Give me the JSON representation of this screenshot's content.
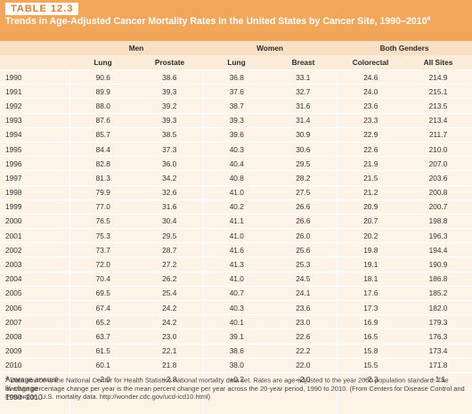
{
  "table_tag": "TABLE 12.3",
  "title": "Trends in Age-Adjusted Cancer Mortality Rates in the United States by Cancer Site, 1990–2010",
  "title_note_marker": "a",
  "group_headers": [
    "Men",
    "Women",
    "Both Genders"
  ],
  "column_headers": [
    "Lung",
    "Prostate",
    "Lung",
    "Breast",
    "Colorectal",
    "All Sites"
  ],
  "rows": [
    {
      "year": "1990",
      "values": [
        "90.6",
        "38.6",
        "36.8",
        "33.1",
        "24.6",
        "214.9"
      ]
    },
    {
      "year": "1991",
      "values": [
        "89.9",
        "39.3",
        "37.6",
        "32.7",
        "24.0",
        "215.1"
      ]
    },
    {
      "year": "1992",
      "values": [
        "88.0",
        "39.2",
        "38.7",
        "31.6",
        "23.6",
        "213.5"
      ]
    },
    {
      "year": "1993",
      "values": [
        "87.6",
        "39.3",
        "39.3",
        "31.4",
        "23.3",
        "213.4"
      ]
    },
    {
      "year": "1994",
      "values": [
        "85.7",
        "38.5",
        "39.6",
        "30.9",
        "22.9",
        "211.7"
      ]
    },
    {
      "year": "1995",
      "values": [
        "84.4",
        "37.3",
        "40.3",
        "30.6",
        "22.6",
        "210.0"
      ]
    },
    {
      "year": "1996",
      "values": [
        "82.8",
        "36.0",
        "40.4",
        "29.5",
        "21.9",
        "207.0"
      ]
    },
    {
      "year": "1997",
      "values": [
        "81.3",
        "34.2",
        "40.8",
        "28.2",
        "21.5",
        "203.6"
      ]
    },
    {
      "year": "1998",
      "values": [
        "79.9",
        "32.6",
        "41.0",
        "27.5",
        "21.2",
        "200.8"
      ]
    },
    {
      "year": "1999",
      "values": [
        "77.0",
        "31.6",
        "40.2",
        "26.6",
        "20.9",
        "200.7"
      ]
    },
    {
      "year": "2000",
      "values": [
        "76.5",
        "30.4",
        "41.1",
        "26.6",
        "20.7",
        "198.8"
      ]
    },
    {
      "year": "2001",
      "values": [
        "75.3",
        "29.5",
        "41.0",
        "26.0",
        "20.2",
        "196.3"
      ]
    },
    {
      "year": "2002",
      "values": [
        "73.7",
        "28.7",
        "41.6",
        "25.6",
        "19.8",
        "194.4"
      ]
    },
    {
      "year": "2003",
      "values": [
        "72.0",
        "27.2",
        "41.3",
        "25.3",
        "19.1",
        "190.9"
      ]
    },
    {
      "year": "2004",
      "values": [
        "70.4",
        "26.2",
        "41.0",
        "24.5",
        "18.1",
        "186.8"
      ]
    },
    {
      "year": "2005",
      "values": [
        "69.5",
        "25.4",
        "40.7",
        "24.1",
        "17.6",
        "185.2"
      ]
    },
    {
      "year": "2006",
      "values": [
        "67.4",
        "24.2",
        "40.3",
        "23.6",
        "17.3",
        "182.0"
      ]
    },
    {
      "year": "2007",
      "values": [
        "65.2",
        "24.2",
        "40.1",
        "23.0",
        "16.9",
        "179.3"
      ]
    },
    {
      "year": "2008",
      "values": [
        "63.7",
        "23.0",
        "39.1",
        "22.6",
        "16.5",
        "176.3"
      ]
    },
    {
      "year": "2009",
      "values": [
        "61.5",
        "22.1",
        "38.6",
        "22.2",
        "15.8",
        "173.4"
      ]
    },
    {
      "year": "2010",
      "values": [
        "60.1",
        "21.8",
        "38.0",
        "22.0",
        "15.5",
        "171.8"
      ]
    }
  ],
  "average_row": {
    "label": "Average annual\n% change\n1990–2010",
    "values": [
      "−2.0",
      "−2.8",
      "+0.2",
      "−2.0",
      "−2.3",
      "−1.1"
    ]
  },
  "footnote": {
    "marker": "a",
    "text": " Data source is the National Center for Health Statistics national mortality data set. Rates are age-adjusted to the year 2000 population standard. The average percentage change per year is the mean percent change per year across the 20-year period, 1990 to 2010. (From Centers for Disease Control and Prevention. U.S. mortality data. http://wonder.cdc.gov/ucd-icd10.html)"
  },
  "colors": {
    "accent_orange": "#f2a65a",
    "tag_text": "#e07a26",
    "header_fill": "#f9e0c4",
    "row_fill": "#fdf3e7"
  }
}
